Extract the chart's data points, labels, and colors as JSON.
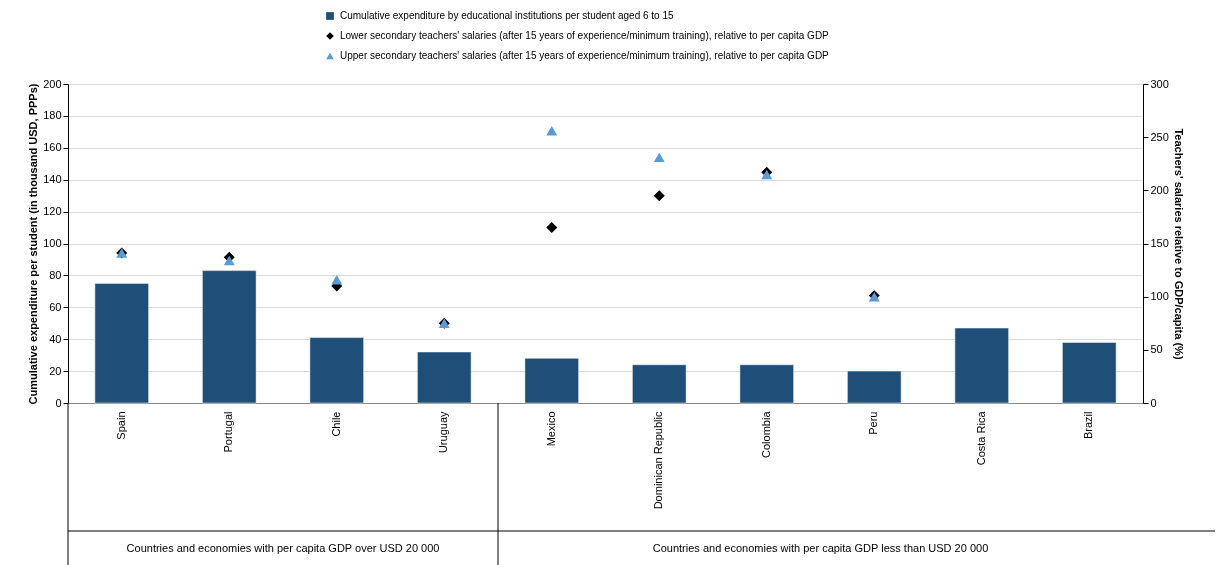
{
  "chart_data": {
    "type": "bar",
    "ylabel": "Cumulative expenditure per student (in thousand USD, PPPs)",
    "y2label": "Teachers' salaries relative to GDP/capita (%)",
    "categories": [
      "Spain",
      "Portugal",
      "Chile",
      "Uruguay",
      "Mexico",
      "Dominican Republic",
      "Colombia",
      "Peru",
      "Costa Rica",
      "Brazil"
    ],
    "series": [
      {
        "name": "Cumulative expenditure by educational institutions per student aged 6 to 15",
        "color": "#1f4e79",
        "marker": "square",
        "values": [
          75,
          83,
          41,
          32,
          28,
          24,
          24,
          20,
          47,
          38
        ]
      },
      {
        "type": "scatter",
        "axis": "y2",
        "name": "Lower secondary teachers' salaries (after 15 years of experience/minimum training), relative to per capita GDP",
        "color": "#000000",
        "marker": "diamond",
        "values": [
          141,
          137,
          110,
          75,
          165,
          195,
          217,
          101,
          null,
          null
        ]
      },
      {
        "type": "scatter",
        "axis": "y2",
        "name": "Upper secondary teachers' salaries (after 15 years of experience/minimum training), relative to per capita GDP",
        "color": "#5b9bd5",
        "marker": "triangle",
        "values": [
          141,
          134,
          116,
          75,
          256,
          231,
          215,
          100,
          null,
          null
        ]
      }
    ],
    "ylim": [
      0,
      200
    ],
    "yticks": [
      0,
      20,
      40,
      60,
      80,
      100,
      120,
      140,
      160,
      180,
      200
    ],
    "y2lim": [
      0,
      300
    ],
    "y2ticks": [
      0,
      50,
      100,
      150,
      200,
      250,
      300
    ],
    "grid": "y",
    "legend": "top",
    "annotations": [
      "Countries and economies with per capita GDP over USD 20 000",
      "Countries and economies with per capita GDP less than USD 20 000"
    ]
  }
}
